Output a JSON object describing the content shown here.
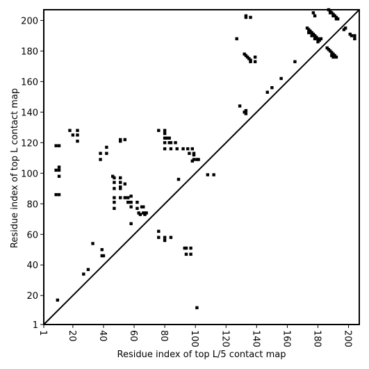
{
  "chart_data": {
    "type": "heatmap",
    "title": "",
    "xlabel": "Residue index of top L/5 contact map",
    "ylabel": "Residue index of top L contact map",
    "xlim": [
      1,
      207
    ],
    "ylim": [
      1,
      207
    ],
    "x_ticks": [
      1,
      20,
      40,
      60,
      80,
      100,
      120,
      140,
      160,
      180,
      200
    ],
    "x_tick_labels": [
      "1",
      "20",
      "40",
      "60",
      "80",
      "100",
      "120",
      "140",
      "160",
      "180",
      "200"
    ],
    "y_ticks": [
      1,
      20,
      40,
      60,
      80,
      100,
      120,
      140,
      160,
      180,
      200
    ],
    "y_tick_labels": [
      "1",
      "20",
      "40",
      "60",
      "80",
      "100",
      "120",
      "140",
      "160",
      "180",
      "200"
    ],
    "diagonal": true,
    "point_color": "#000000",
    "upper_triangle_contacts": [
      [
        177,
        205
      ],
      [
        178,
        203
      ],
      [
        187,
        207
      ],
      [
        188,
        206
      ],
      [
        189,
        205
      ],
      [
        190,
        204
      ],
      [
        191,
        203
      ],
      [
        192,
        202
      ],
      [
        193,
        201
      ],
      [
        188,
        205
      ],
      [
        190,
        203
      ],
      [
        192,
        201
      ],
      [
        197,
        194
      ],
      [
        198,
        195
      ],
      [
        201,
        191
      ],
      [
        202,
        190
      ],
      [
        204,
        190
      ],
      [
        204,
        188
      ],
      [
        173,
        195
      ],
      [
        174,
        194
      ],
      [
        175,
        193
      ],
      [
        176,
        192
      ],
      [
        177,
        191
      ],
      [
        178,
        190
      ],
      [
        179,
        189
      ],
      [
        180,
        188
      ],
      [
        181,
        187
      ],
      [
        174,
        192
      ],
      [
        176,
        190
      ],
      [
        178,
        188
      ],
      [
        180,
        186
      ],
      [
        182,
        188
      ],
      [
        186,
        182
      ],
      [
        187,
        181
      ],
      [
        188,
        180
      ],
      [
        189,
        179
      ],
      [
        190,
        178
      ],
      [
        191,
        177
      ],
      [
        192,
        176
      ],
      [
        189,
        177
      ],
      [
        190,
        176
      ],
      [
        165,
        173
      ],
      [
        156,
        162
      ],
      [
        150,
        156
      ],
      [
        147,
        153
      ],
      [
        132,
        178
      ],
      [
        133,
        177
      ],
      [
        134,
        176
      ],
      [
        135,
        175
      ],
      [
        136,
        174
      ],
      [
        136,
        173
      ],
      [
        139,
        176
      ],
      [
        139,
        173
      ],
      [
        132,
        140
      ],
      [
        133,
        139
      ],
      [
        133,
        141
      ],
      [
        129,
        144
      ],
      [
        127,
        188
      ],
      [
        133,
        202
      ],
      [
        133,
        203
      ],
      [
        136,
        202
      ]
    ],
    "lower_triangle_contacts": [
      [
        9,
        118
      ],
      [
        11,
        118
      ],
      [
        9,
        102
      ],
      [
        11,
        102
      ],
      [
        11,
        104
      ],
      [
        11,
        98
      ],
      [
        9,
        86
      ],
      [
        11,
        86
      ],
      [
        18,
        128
      ],
      [
        20,
        125
      ],
      [
        23,
        128
      ],
      [
        23,
        125
      ],
      [
        23,
        121
      ],
      [
        38,
        113
      ],
      [
        38,
        109
      ],
      [
        42,
        117
      ],
      [
        42,
        113
      ],
      [
        51,
        121
      ],
      [
        51,
        122
      ],
      [
        54,
        122
      ],
      [
        46,
        98
      ],
      [
        47,
        97
      ],
      [
        47,
        94
      ],
      [
        47,
        90
      ],
      [
        47,
        84
      ],
      [
        47,
        81
      ],
      [
        47,
        77
      ],
      [
        51,
        97
      ],
      [
        51,
        94
      ],
      [
        51,
        91
      ],
      [
        51,
        90
      ],
      [
        51,
        84
      ],
      [
        54,
        93
      ],
      [
        54,
        84
      ],
      [
        56,
        84
      ],
      [
        56,
        81
      ],
      [
        58,
        85
      ],
      [
        58,
        81
      ],
      [
        58,
        78
      ],
      [
        58,
        67
      ],
      [
        62,
        81
      ],
      [
        62,
        77
      ],
      [
        63,
        74
      ],
      [
        64,
        73
      ],
      [
        65,
        78
      ],
      [
        66,
        78
      ],
      [
        66,
        74
      ],
      [
        67,
        74
      ],
      [
        67,
        73
      ],
      [
        68,
        74
      ],
      [
        76,
        128
      ],
      [
        80,
        128
      ],
      [
        80,
        126
      ],
      [
        80,
        123
      ],
      [
        81,
        123
      ],
      [
        80,
        120
      ],
      [
        80,
        116
      ],
      [
        83,
        123
      ],
      [
        83,
        120
      ],
      [
        84,
        120
      ],
      [
        87,
        120
      ],
      [
        84,
        116
      ],
      [
        88,
        116
      ],
      [
        92,
        116
      ],
      [
        95,
        116
      ],
      [
        96,
        113
      ],
      [
        98,
        116
      ],
      [
        99,
        113
      ],
      [
        99,
        112
      ],
      [
        99,
        109
      ],
      [
        98,
        108
      ],
      [
        101,
        109
      ],
      [
        102,
        109
      ],
      [
        89,
        96
      ],
      [
        108,
        99
      ],
      [
        112,
        99
      ],
      [
        76,
        62
      ],
      [
        76,
        58
      ],
      [
        80,
        58
      ],
      [
        80,
        56
      ],
      [
        84,
        58
      ],
      [
        93,
        51
      ],
      [
        94,
        51
      ],
      [
        97,
        51
      ],
      [
        94,
        47
      ],
      [
        97,
        47
      ],
      [
        39,
        50
      ],
      [
        39,
        46
      ],
      [
        40,
        46
      ],
      [
        33,
        54
      ],
      [
        30,
        37
      ],
      [
        27,
        34
      ],
      [
        10,
        17
      ],
      [
        101,
        12
      ]
    ]
  }
}
